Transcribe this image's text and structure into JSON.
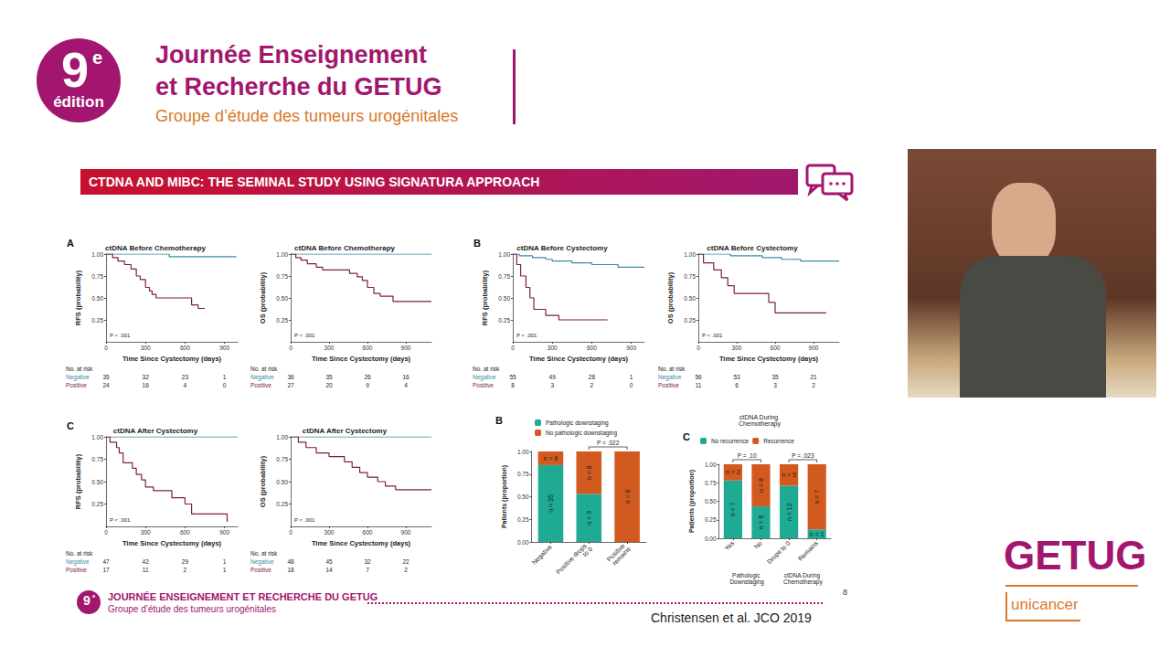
{
  "header": {
    "logo": {
      "number": "9",
      "superscript": "e",
      "text": "édition"
    },
    "title_lines": [
      "Journée Enseignement",
      "et Recherche du GETUG"
    ],
    "subtitle": "Groupe d’étude des tumeurs urogénitales"
  },
  "slide_title": "CTDNA AND MIBC: THE SEMINAL STUDY USING SIGNATURA APPROACH",
  "chart_data": [
    {
      "type": "step",
      "panel": "A",
      "title": "ctDNA Before Chemotherapy",
      "x_label": "Time Since Cystectomy (days)",
      "y_label": "RFS (probability)",
      "annotations": [
        "P < .001"
      ],
      "xlim": [
        0,
        1000
      ],
      "xticks": [
        0,
        300,
        600,
        900
      ],
      "ylim": [
        0,
        1
      ],
      "yticks": [
        0.25,
        {
          "value": 0.5,
          "label": "0.50"
        },
        0.75,
        {
          "value": 1,
          "label": "1.00"
        }
      ],
      "grid": false,
      "series": [
        {
          "name": "Negative",
          "color": "#3a8ca3",
          "x": [
            0,
            480,
            990
          ],
          "values": [
            1,
            0.97,
            0.97
          ]
        },
        {
          "name": "Positive",
          "color": "#7b2142",
          "x": [
            0,
            50,
            90,
            140,
            190,
            230,
            260,
            300,
            330,
            350,
            380,
            650,
            700,
            750
          ],
          "values": [
            1,
            0.96,
            0.92,
            0.88,
            0.83,
            0.75,
            0.71,
            0.62,
            0.58,
            0.54,
            0.5,
            0.42,
            0.38,
            0.38
          ]
        }
      ],
      "risk_table": {
        "title": "No. at risk",
        "x": [
          0,
          300,
          600,
          900
        ],
        "rows": [
          {
            "name": "Negative",
            "color": "#3a8ca3",
            "values": [
              35,
              32,
              23,
              1
            ]
          },
          {
            "name": "Positive",
            "color": "#7b2142",
            "values": [
              24,
              16,
              4,
              0
            ]
          }
        ]
      }
    },
    {
      "type": "step",
      "title": "ctDNA Before Chemotherapy",
      "x_label": "Time Since Cystectomy (days)",
      "y_label": "OS (probability)",
      "annotations": [
        "P < .001"
      ],
      "xlim": [
        0,
        1100
      ],
      "xticks": [
        0,
        300,
        600,
        900
      ],
      "ylim": [
        0,
        1
      ],
      "yticks": [
        0.25,
        {
          "value": 0.5,
          "label": "0.50"
        },
        0.75,
        {
          "value": 1,
          "label": "1.00"
        }
      ],
      "grid": false,
      "series": [
        {
          "name": "Negative",
          "color": "#3a8ca3",
          "x": [
            0,
            1100
          ],
          "values": [
            1,
            1
          ]
        },
        {
          "name": "Positive",
          "color": "#7b2142",
          "x": [
            0,
            40,
            80,
            130,
            200,
            250,
            460,
            520,
            560,
            600,
            650,
            700,
            800,
            1100
          ],
          "values": [
            1,
            0.96,
            0.93,
            0.89,
            0.85,
            0.82,
            0.78,
            0.74,
            0.7,
            0.62,
            0.55,
            0.52,
            0.46,
            0.46
          ]
        }
      ],
      "risk_table": {
        "title": "No. at risk",
        "x": [
          0,
          300,
          600,
          900
        ],
        "rows": [
          {
            "name": "Negative",
            "color": "#3a8ca3",
            "values": [
              36,
              35,
              26,
              16
            ]
          },
          {
            "name": "Positive",
            "color": "#7b2142",
            "values": [
              27,
              20,
              9,
              4
            ]
          }
        ]
      }
    },
    {
      "type": "step",
      "panel": "B",
      "title": "ctDNA Before Cystectomy",
      "x_label": "Time Since Cystectomy (days)",
      "y_label": "RFS (probability)",
      "annotations": [
        "P < .001"
      ],
      "xlim": [
        0,
        1000
      ],
      "xticks": [
        0,
        300,
        600,
        900
      ],
      "ylim": [
        0,
        1
      ],
      "yticks": [
        0.25,
        {
          "value": 0.5,
          "label": "0.50"
        },
        0.75,
        {
          "value": 1,
          "label": "1.00"
        }
      ],
      "grid": false,
      "series": [
        {
          "name": "Negative",
          "color": "#3a8ca3",
          "x": [
            0,
            50,
            150,
            250,
            300,
            450,
            600,
            800,
            1000
          ],
          "values": [
            1,
            0.98,
            0.96,
            0.94,
            0.92,
            0.9,
            0.88,
            0.85,
            0.85
          ]
        },
        {
          "name": "Positive",
          "color": "#7b2142",
          "x": [
            0,
            30,
            60,
            100,
            130,
            160,
            250,
            350,
            720
          ],
          "values": [
            1,
            0.88,
            0.75,
            0.62,
            0.5,
            0.37,
            0.3,
            0.25,
            0.25
          ]
        }
      ],
      "risk_table": {
        "title": "No. at risk",
        "x": [
          0,
          300,
          600,
          900
        ],
        "rows": [
          {
            "name": "Negative",
            "color": "#3a8ca3",
            "values": [
              55,
              49,
              28,
              1
            ]
          },
          {
            "name": "Positive",
            "color": "#7b2142",
            "values": [
              8,
              3,
              2,
              0
            ]
          }
        ]
      }
    },
    {
      "type": "step",
      "title": "ctDNA Before Cystectomy",
      "x_label": "Time Since Cystectomy (days)",
      "y_label": "OS (probability)",
      "annotations": [
        "P < .001"
      ],
      "xlim": [
        0,
        1100
      ],
      "xticks": [
        0,
        300,
        600,
        900
      ],
      "ylim": [
        0,
        1
      ],
      "yticks": [
        0.25,
        {
          "value": 0.5,
          "label": "0.50"
        },
        0.75,
        {
          "value": 1,
          "label": "1.00"
        }
      ],
      "grid": false,
      "series": [
        {
          "name": "Negative",
          "color": "#3a8ca3",
          "x": [
            0,
            250,
            500,
            650,
            800,
            1100
          ],
          "values": [
            1,
            0.98,
            0.96,
            0.94,
            0.92,
            0.92
          ]
        },
        {
          "name": "Positive",
          "color": "#7b2142",
          "x": [
            0,
            40,
            120,
            180,
            230,
            280,
            550,
            600,
            1000
          ],
          "values": [
            1,
            0.9,
            0.82,
            0.73,
            0.64,
            0.55,
            0.45,
            0.33,
            0.33
          ]
        }
      ],
      "risk_table": {
        "title": "No. at risk",
        "x": [
          0,
          300,
          600,
          900
        ],
        "rows": [
          {
            "name": "Negative",
            "color": "#3a8ca3",
            "values": [
              56,
              53,
              35,
              21
            ]
          },
          {
            "name": "Positive",
            "color": "#7b2142",
            "values": [
              11,
              6,
              3,
              2
            ]
          }
        ]
      }
    },
    {
      "type": "step",
      "panel": "C",
      "title": "ctDNA After Cystectomy",
      "x_label": "Time Since Cystectomy (days)",
      "y_label": "RFS (probability)",
      "annotations": [
        "P < .001"
      ],
      "xlim": [
        0,
        1000
      ],
      "xticks": [
        0,
        300,
        600,
        900
      ],
      "ylim": [
        0,
        1
      ],
      "yticks": [
        0.25,
        {
          "value": 0.5,
          "label": "0.50"
        },
        0.75,
        {
          "value": 1,
          "label": "1.00"
        }
      ],
      "grid": false,
      "series": [
        {
          "name": "Negative",
          "color": "#3a8ca3",
          "x": [
            0,
            1000
          ],
          "values": [
            1,
            1
          ]
        },
        {
          "name": "Positive",
          "color": "#7b2142",
          "x": [
            0,
            30,
            80,
            100,
            130,
            200,
            230,
            270,
            300,
            360,
            500,
            600,
            650,
            920
          ],
          "values": [
            1,
            0.94,
            0.88,
            0.82,
            0.71,
            0.65,
            0.58,
            0.52,
            0.44,
            0.4,
            0.32,
            0.25,
            0.14,
            0.05
          ]
        }
      ],
      "risk_table": {
        "title": "No. at risk",
        "x": [
          0,
          300,
          600,
          900
        ],
        "rows": [
          {
            "name": "Negative",
            "color": "#3a8ca3",
            "values": [
              47,
              42,
              29,
              1
            ]
          },
          {
            "name": "Positive",
            "color": "#7b2142",
            "values": [
              17,
              11,
              2,
              1
            ]
          }
        ]
      }
    },
    {
      "type": "step",
      "title": "ctDNA After Cystectomy",
      "x_label": "Time Since Cystectomy (days)",
      "y_label": "OS (probability)",
      "annotations": [
        "P < .001"
      ],
      "xlim": [
        0,
        1100
      ],
      "xticks": [
        0,
        300,
        600,
        900
      ],
      "ylim": [
        0,
        1
      ],
      "yticks": [
        0.25,
        {
          "value": 0.5,
          "label": "0.50"
        },
        0.75,
        {
          "value": 1,
          "label": "1.00"
        }
      ],
      "grid": false,
      "series": [
        {
          "name": "Negative",
          "color": "#3a8ca3",
          "x": [
            0,
            1100
          ],
          "values": [
            1,
            1
          ]
        },
        {
          "name": "Positive",
          "color": "#7b2142",
          "x": [
            0,
            60,
            120,
            200,
            300,
            420,
            480,
            540,
            600,
            680,
            740,
            820,
            1100
          ],
          "values": [
            1,
            0.94,
            0.88,
            0.82,
            0.78,
            0.72,
            0.66,
            0.6,
            0.55,
            0.5,
            0.45,
            0.41,
            0.41
          ]
        }
      ],
      "risk_table": {
        "title": "No. at risk",
        "x": [
          0,
          300,
          600,
          900
        ],
        "rows": [
          {
            "name": "Negative",
            "color": "#3a8ca3",
            "values": [
              48,
              45,
              32,
              22
            ]
          },
          {
            "name": "Positive",
            "color": "#7b2142",
            "values": [
              18,
              14,
              7,
              2
            ]
          }
        ]
      }
    },
    {
      "type": "bar",
      "panel": "B",
      "stacked": true,
      "legend": "top",
      "y_label": "Patients (proportion)",
      "categories": [
        "Negative",
        "Positive drops to 0",
        "Positive remains"
      ],
      "ylim": [
        0,
        1
      ],
      "yticks": [
        {
          "value": 0,
          "label": "0.00"
        },
        0.25,
        {
          "value": 0.5,
          "label": "0.50"
        },
        0.75,
        {
          "value": 1,
          "label": "1.00"
        }
      ],
      "grid": false,
      "annotations": [
        "P = .022"
      ],
      "series": [
        {
          "name": "Pathologic downstaging",
          "color": "#1faa94",
          "values": [
            0.85,
            0.53,
            0
          ],
          "n_labels": [
            "n = 35",
            "n = 9",
            null
          ]
        },
        {
          "name": "No pathologic downstaging",
          "color": "#d35a1f",
          "values": [
            0.15,
            0.47,
            1
          ],
          "n_labels": [
            "n = 6",
            "n = 8",
            "n = 8"
          ]
        }
      ]
    },
    {
      "type": "bar",
      "panel": "C",
      "stacked": true,
      "legend": "top",
      "title": "ctDNA During Chemotherapy",
      "y_label": "Patients (proportion)",
      "categories": [
        "Yes",
        "No",
        "Drops to 0",
        "Remains"
      ],
      "groups": [
        "Pathologic Downstaging",
        "ctDNA During Chemotherapy"
      ],
      "ylim": [
        0,
        1
      ],
      "yticks": [
        {
          "value": 0,
          "label": "0.00"
        },
        0.25,
        {
          "value": 0.5,
          "label": "0.50"
        },
        0.75,
        {
          "value": 1,
          "label": "1.00"
        }
      ],
      "grid": false,
      "annotations": [
        "P = .10",
        "P = .023"
      ],
      "series": [
        {
          "name": "No recurrence",
          "color": "#1faa94",
          "values": [
            0.78,
            0.43,
            0.71,
            0.12
          ],
          "n_labels": [
            "n = 7",
            "n = 6",
            "n = 12",
            "n = 1"
          ]
        },
        {
          "name": "Recurrence",
          "color": "#d35a1f",
          "values": [
            0.22,
            0.57,
            0.29,
            0.88
          ],
          "n_labels": [
            "n = 2",
            "n = 8",
            "n = 5",
            "n = 7"
          ]
        }
      ]
    }
  ],
  "footer": {
    "title": "JOURNÉE ENSEIGNEMENT ET RECHERCHE DU GETUG",
    "subtitle": "Groupe d’étude des tumeurs urogénitales",
    "page": "8",
    "citation": "Christensen et al. JCO 2019",
    "brand": "GETUG",
    "brand_sub": "unicancer"
  }
}
